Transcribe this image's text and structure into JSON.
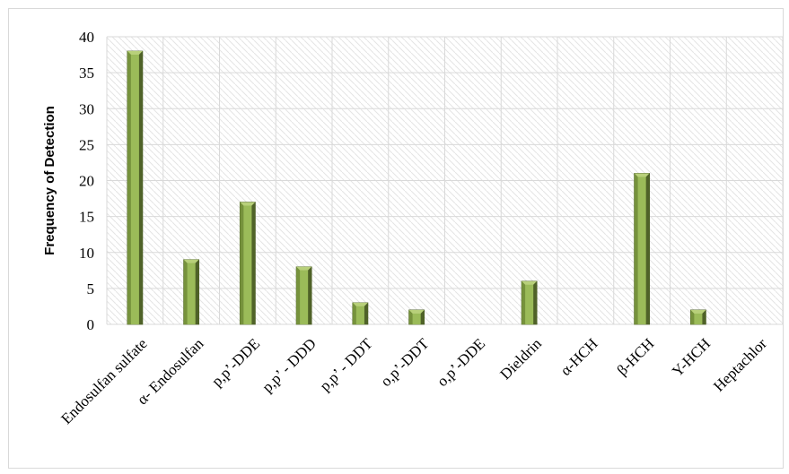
{
  "chart_data": {
    "type": "bar",
    "title": "",
    "xlabel": "",
    "ylabel": "Frequency of Detection",
    "ylim": [
      0,
      40
    ],
    "yticks": [
      0,
      5,
      10,
      15,
      20,
      25,
      30,
      35,
      40
    ],
    "grid": true,
    "categories": [
      "Endosulfan sulfate",
      "α- Endosulfan",
      "p,p’-DDE",
      "p,p’ - DDD",
      "p,p’ - DDT",
      "o,p’-DDT",
      "o,p’-DDE",
      "Dieldrin",
      "α-HCH",
      "β-HCH",
      "Y-HCH",
      "Heptachlor"
    ],
    "values": [
      38,
      9,
      17,
      8,
      3,
      2,
      0,
      6,
      0,
      21,
      2,
      0
    ],
    "colors": {
      "bar_light": "#9bbb59",
      "bar_mid": "#76923c",
      "bar_dark": "#4f6228",
      "grid": "#d9d9d9",
      "hatch": "#e4e4e4"
    }
  }
}
